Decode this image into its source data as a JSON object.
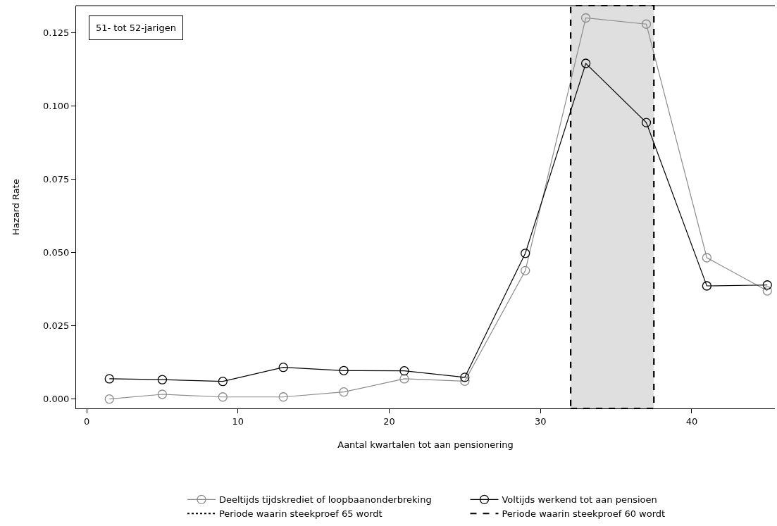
{
  "chart_data": {
    "type": "line",
    "xlabel": "Aantal kwartalen tot aan pensionering",
    "ylabel": "Hazard Rate",
    "annotations": [
      "51- tot 52-jarigen"
    ],
    "x": [
      1.5,
      5,
      9,
      13,
      17,
      21,
      25,
      29,
      33,
      37,
      41,
      45
    ],
    "series": [
      {
        "name": "Deeltijds tijdskrediet of loopbaanonderbreking",
        "color": "#8c8c8c",
        "values": [
          0.0,
          0.0016,
          0.0007,
          0.0007,
          0.0024,
          0.0069,
          0.0061,
          0.0438,
          0.13,
          0.1279,
          0.0482,
          0.0369
        ]
      },
      {
        "name": "Voltijds werkend tot aan pensioen",
        "color": "#000000",
        "values": [
          0.0069,
          0.0066,
          0.006,
          0.0108,
          0.0097,
          0.0096,
          0.0074,
          0.0497,
          0.1145,
          0.0943,
          0.0386,
          0.0389
        ]
      },
      {
        "name": "Periode waarin steekproef 65 wordt",
        "color": "#000000",
        "line_style": "dotted",
        "marker": "none",
        "values": [
          null,
          null,
          null,
          null,
          null,
          null,
          null,
          null,
          null,
          null,
          null,
          null
        ]
      }
    ],
    "bands": [
      {
        "axis": "x",
        "from": 32,
        "to": 37.5,
        "label": "Periode waarin steekproef 60 wordt",
        "color": "#000000"
      }
    ],
    "xlim": [
      -0.7,
      45.5
    ],
    "xticks": [
      0,
      10,
      20,
      30,
      40
    ],
    "ylim": [
      -0.0032,
      0.1342
    ],
    "yticks": [
      {
        "value": 0,
        "label": "0.000"
      },
      {
        "value": 0.025,
        "label": "0.025"
      },
      {
        "value": 0.05,
        "label": "0.050"
      },
      {
        "value": 0.075,
        "label": "0.075"
      },
      {
        "value": 0.1,
        "label": "0.100"
      },
      {
        "value": 0.125,
        "label": "0.125"
      }
    ],
    "marker": "circle",
    "line_style": "solid",
    "grid": false,
    "legend": "bottom"
  }
}
